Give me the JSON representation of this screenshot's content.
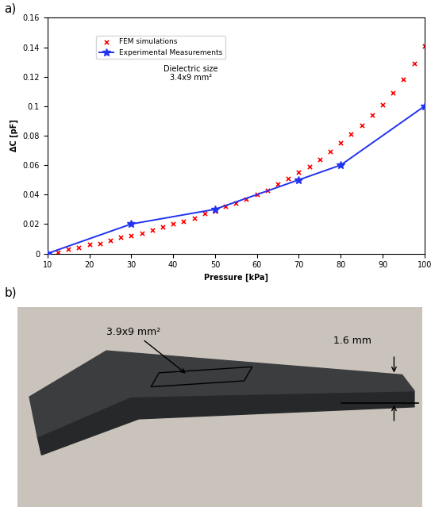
{
  "chart_data": {
    "type": "line",
    "x_label": "Pressure [kPa]",
    "y_label": "ΔC [pF]",
    "annotation": "Dielectric size\n3.4x9 mm²",
    "xlim": [
      10,
      100
    ],
    "xticks": [
      10,
      20,
      30,
      40,
      50,
      60,
      70,
      80,
      90,
      100
    ],
    "ylim": [
      0,
      0.16
    ],
    "yticks": [
      0,
      0.02,
      0.04,
      0.06,
      0.08,
      0.1,
      0.12,
      0.14,
      0.16
    ],
    "legend": "upper left",
    "grid": false,
    "series": [
      {
        "name": "FEM simulations",
        "type": "scatter",
        "color": "#ff0000",
        "marker": "x",
        "x": [
          10,
          12.5,
          15,
          17.5,
          20,
          22.5,
          25,
          27.5,
          30,
          32.5,
          35,
          37.5,
          40,
          42.5,
          45,
          47.5,
          50,
          52.5,
          55,
          57.5,
          60,
          62.5,
          65,
          67.5,
          70,
          72.5,
          75,
          77.5,
          80,
          82.5,
          85,
          87.5,
          90,
          92.5,
          95,
          97.5,
          100
        ],
        "values": [
          0,
          0.001,
          0.003,
          0.004,
          0.006,
          0.007,
          0.009,
          0.011,
          0.012,
          0.014,
          0.016,
          0.018,
          0.02,
          0.022,
          0.024,
          0.027,
          0.029,
          0.032,
          0.034,
          0.037,
          0.04,
          0.043,
          0.047,
          0.051,
          0.055,
          0.059,
          0.064,
          0.069,
          0.075,
          0.081,
          0.087,
          0.094,
          0.101,
          0.109,
          0.118,
          0.129,
          0.141
        ]
      },
      {
        "name": "Experimental Measurements",
        "type": "line",
        "color": "#2233ee",
        "marker": "*",
        "line_style": "solid",
        "x": [
          10,
          30,
          50,
          70,
          80,
          100
        ],
        "values": [
          0,
          0.02,
          0.03,
          0.05,
          0.06,
          0.1
        ]
      }
    ]
  },
  "panel_labels": [
    "a)",
    "b)"
  ],
  "photo_labels": [
    "3.9x9 mm²",
    "1.6 mm"
  ]
}
